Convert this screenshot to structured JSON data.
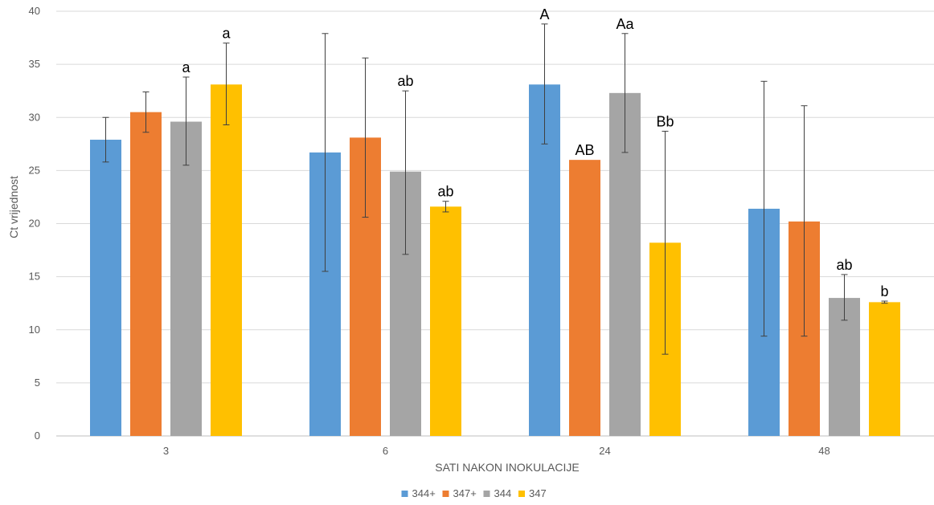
{
  "chart_data": {
    "type": "bar",
    "title": "",
    "xlabel": "SATI NAKON INOKULACIJE",
    "ylabel": "Ct vrijednost",
    "ylim": [
      0,
      40
    ],
    "yticks": [
      0,
      5,
      10,
      15,
      20,
      25,
      30,
      35,
      40
    ],
    "grid": true,
    "legend_position": "bottom",
    "categories": [
      "3",
      "6",
      "24",
      "48"
    ],
    "series": [
      {
        "name": "344+",
        "color": "#5B9BD5",
        "values": [
          27.9,
          26.7,
          33.1,
          21.4
        ],
        "error": [
          [
            25.8,
            30.0
          ],
          [
            15.5,
            37.9
          ],
          [
            27.5,
            38.8
          ],
          [
            9.4,
            33.4
          ]
        ],
        "labels": [
          "",
          "",
          "A",
          ""
        ]
      },
      {
        "name": "347+",
        "color": "#ED7D31",
        "values": [
          30.5,
          28.1,
          26.0,
          20.2
        ],
        "error": [
          [
            28.6,
            32.4
          ],
          [
            20.6,
            35.6
          ],
          null,
          [
            9.4,
            31.1
          ]
        ],
        "labels": [
          "",
          "",
          "AB",
          ""
        ]
      },
      {
        "name": "344",
        "color": "#A5A5A5",
        "values": [
          29.6,
          24.9,
          32.3,
          13.0
        ],
        "error": [
          [
            25.5,
            33.8
          ],
          [
            17.1,
            32.5
          ],
          [
            26.7,
            37.9
          ],
          [
            10.9,
            15.2
          ]
        ],
        "labels": [
          "a",
          "ab",
          "Aa",
          "ab"
        ]
      },
      {
        "name": "347",
        "color": "#FFC000",
        "values": [
          33.1,
          21.6,
          18.2,
          12.6
        ],
        "error": [
          [
            29.3,
            37.0
          ],
          [
            21.1,
            22.1
          ],
          [
            7.7,
            28.7
          ],
          [
            12.5,
            12.7
          ]
        ],
        "labels": [
          "a",
          "ab",
          "Bb",
          "b"
        ]
      }
    ]
  }
}
